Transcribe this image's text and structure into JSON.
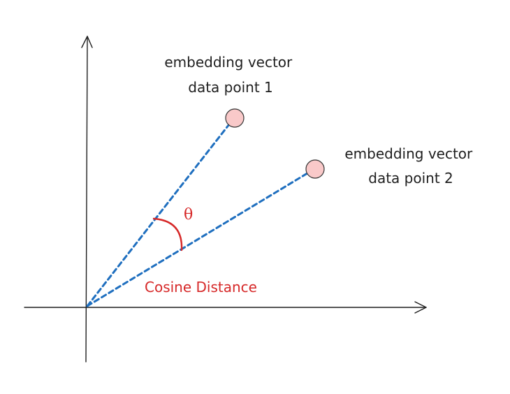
{
  "diagram": {
    "point1_label": {
      "line1": "embedding vector",
      "line2": "data point 1"
    },
    "point2_label": {
      "line1": "embedding vector",
      "line2": "data point 2"
    },
    "angle_symbol": "θ",
    "angle_caption": "Cosine Distance"
  },
  "colors": {
    "vector_line": "#1f6fbf",
    "point_fill": "#f9c9c9",
    "accent_red": "#d62828",
    "axis": "#1e1e1e"
  }
}
